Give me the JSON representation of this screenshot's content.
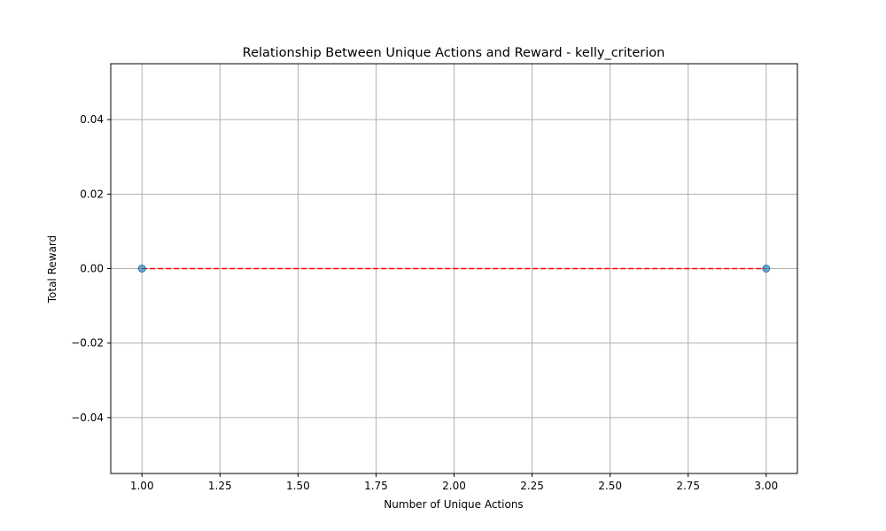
{
  "chart_data": {
    "type": "scatter",
    "title": "Relationship Between Unique Actions and Reward - kelly_criterion",
    "xlabel": "Number of Unique Actions",
    "ylabel": "Total Reward",
    "xlim": [
      0.9,
      3.1
    ],
    "ylim": [
      -0.055,
      0.055
    ],
    "xticks": [
      1.0,
      1.25,
      1.5,
      1.75,
      2.0,
      2.25,
      2.5,
      2.75,
      3.0
    ],
    "xtick_labels": [
      "1.00",
      "1.25",
      "1.50",
      "1.75",
      "2.00",
      "2.25",
      "2.50",
      "2.75",
      "3.00"
    ],
    "yticks": [
      -0.04,
      -0.02,
      0.0,
      0.02,
      0.04
    ],
    "ytick_labels": [
      "−0.04",
      "−0.02",
      "0.00",
      "0.02",
      "0.04"
    ],
    "grid": true,
    "points": [
      {
        "x": 1,
        "y": 0.0
      },
      {
        "x": 3,
        "y": 0.0
      }
    ],
    "trendline": {
      "style": "dashed",
      "x": [
        1,
        3
      ],
      "y": [
        0.0,
        0.0
      ]
    },
    "colors": {
      "points": "#1f77b4",
      "trendline": "#ff0000",
      "grid": "#b0b0b0"
    }
  }
}
